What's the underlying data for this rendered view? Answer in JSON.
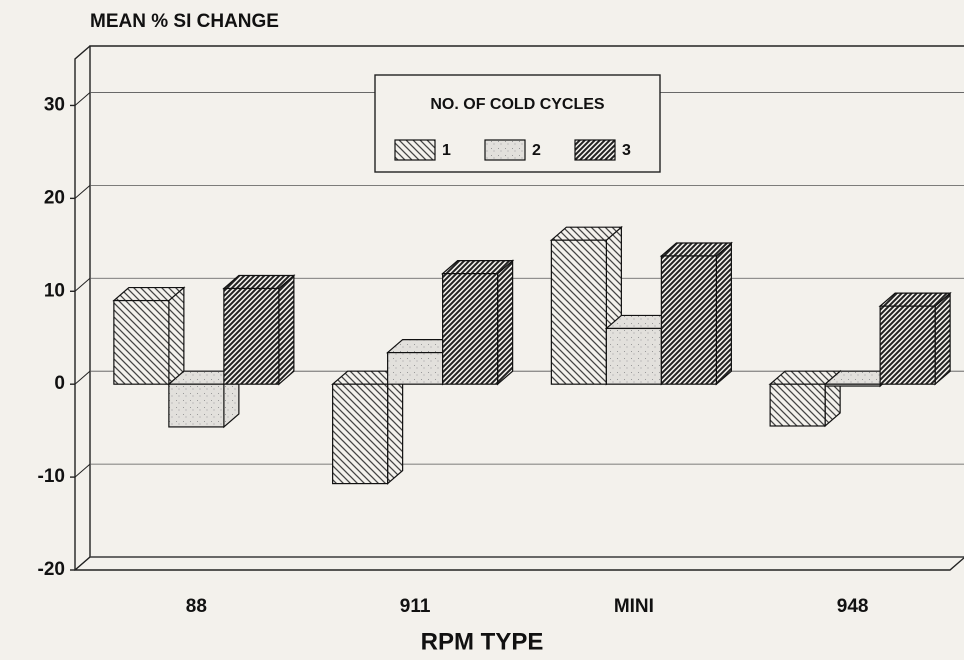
{
  "chart_data": {
    "type": "bar3d",
    "title": "MEAN % SI CHANGE",
    "xlabel": "RPM TYPE",
    "legend_title": "NO. OF COLD CYCLES",
    "categories": [
      "88",
      "911",
      "MINI",
      "948"
    ],
    "series": [
      {
        "name": "1",
        "color": "#444444",
        "values": [
          9,
          -10.7,
          15.5,
          -4.5
        ]
      },
      {
        "name": "2",
        "color": "#9a9a9a",
        "values": [
          -4.6,
          3.4,
          6,
          -0.2
        ]
      },
      {
        "name": "3",
        "color": "#222222",
        "values": [
          10.3,
          11.9,
          13.8,
          8.4
        ]
      }
    ],
    "ylim": [
      -20,
      35
    ],
    "yticks": [
      -20,
      -10,
      0,
      10,
      20,
      30
    ],
    "grid": true
  }
}
